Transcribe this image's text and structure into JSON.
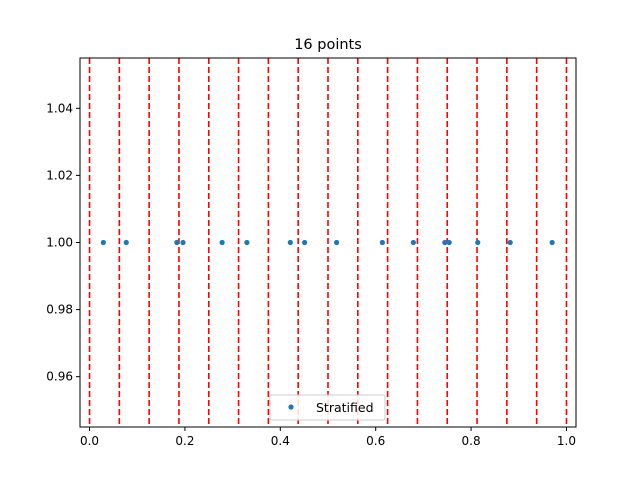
{
  "chart_data": {
    "type": "scatter",
    "title": "16 points",
    "xlabel": "",
    "ylabel": "",
    "xlim": [
      -0.02,
      1.02
    ],
    "ylim": [
      0.945,
      1.055
    ],
    "xticks": [
      0.0,
      0.2,
      0.4,
      0.6,
      0.8,
      1.0
    ],
    "xtick_labels": [
      "0.0",
      "0.2",
      "0.4",
      "0.6",
      "0.8",
      "1.0"
    ],
    "yticks": [
      0.96,
      0.98,
      1.0,
      1.02,
      1.04
    ],
    "ytick_labels": [
      "0.96",
      "0.98",
      "1.00",
      "1.02",
      "1.04"
    ],
    "grid": false,
    "legend": "lower-center",
    "series": [
      {
        "name": "Stratified",
        "color": "#1f77b4",
        "marker": "circle",
        "x": [
          0.029,
          0.077,
          0.183,
          0.196,
          0.278,
          0.33,
          0.421,
          0.451,
          0.518,
          0.614,
          0.679,
          0.745,
          0.754,
          0.814,
          0.882,
          0.97
        ],
        "y": [
          1.0,
          1.0,
          1.0,
          1.0,
          1.0,
          1.0,
          1.0,
          1.0,
          1.0,
          1.0,
          1.0,
          1.0,
          1.0,
          1.0,
          1.0,
          1.0
        ]
      }
    ],
    "vlines": {
      "color": "#ff0000",
      "style": "dashed",
      "x": [
        0.0,
        0.0625,
        0.125,
        0.1875,
        0.25,
        0.3125,
        0.375,
        0.4375,
        0.5,
        0.5625,
        0.625,
        0.6875,
        0.75,
        0.8125,
        0.875,
        0.9375,
        1.0
      ]
    }
  }
}
